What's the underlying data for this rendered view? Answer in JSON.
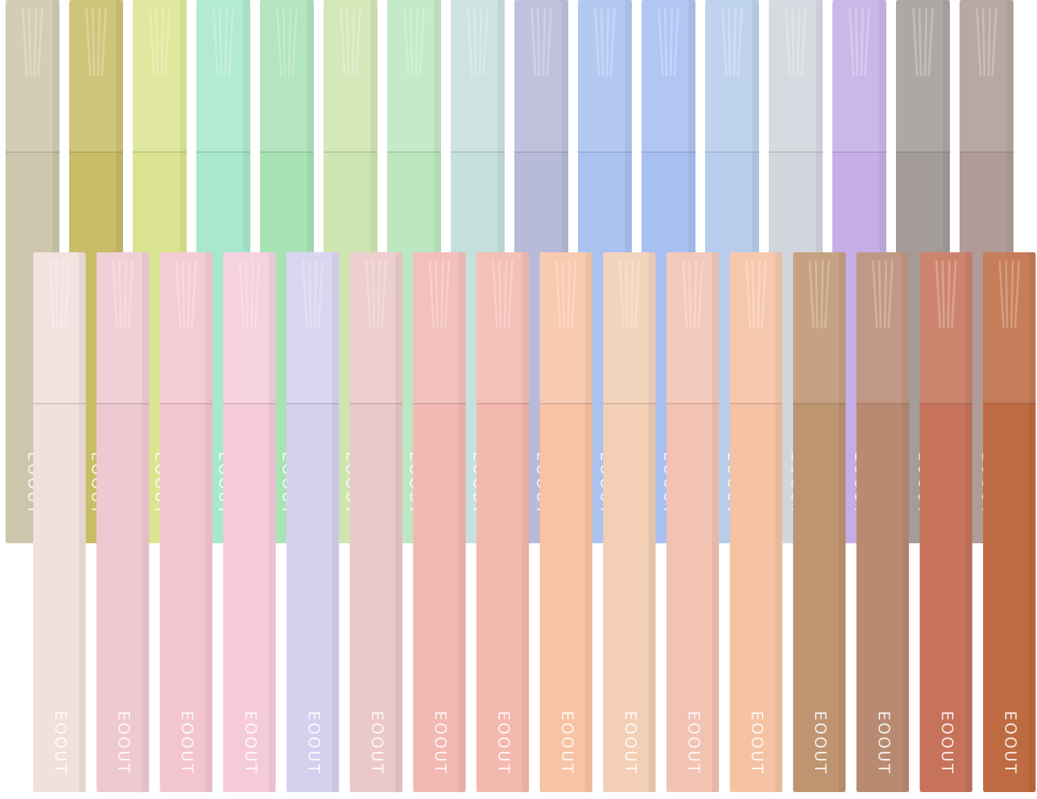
{
  "brand": "EOOUT",
  "back_row": {
    "colors": [
      "#cdc6ac",
      "#c9bd68",
      "#dbe591",
      "#a8e8cc",
      "#a9e2b5",
      "#cfe5b1",
      "#bde7c0",
      "#c6e0dd",
      "#b8bad9",
      "#a9c2f0",
      "#a8bff2",
      "#b8cdec",
      "#d1d6dd",
      "#c5aee6",
      "#a39c99",
      "#b09b97"
    ]
  },
  "front_row": {
    "colors": [
      "#f1e0dc",
      "#efc9d2",
      "#f3c6cf",
      "#f5cbdb",
      "#d6d0ee",
      "#eac9c8",
      "#f2b8b2",
      "#f3b8ae",
      "#f8c3a5",
      "#f2cfb5",
      "#f2c2b3",
      "#f5c2a3",
      "#bf9471",
      "#b98a72",
      "#c7735b",
      "#bf6b42"
    ]
  }
}
